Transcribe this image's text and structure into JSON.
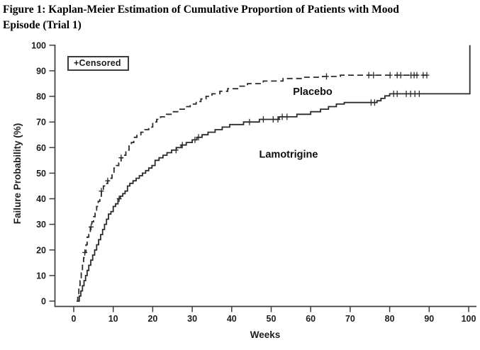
{
  "figure": {
    "title_line1": "Figure 1: Kaplan-Meier Estimation of Cumulative Proportion of Patients with Mood",
    "title_line2": "Episode (Trial 1)"
  },
  "colors": {
    "background": "#ffffff",
    "axis": "#3d3d3d",
    "line": "#2b2b2b",
    "text": "#1d1d1d"
  },
  "chart_data": {
    "type": "line",
    "subtype": "kaplan-meier-step",
    "title": "Figure 1: Kaplan-Meier Estimation of Cumulative Proportion of Patients with Mood Episode (Trial 1)",
    "xlabel": "Weeks",
    "ylabel": "Failure Probability (%)",
    "legend": "+Censored",
    "xlim": [
      0,
      100
    ],
    "ylim": [
      0,
      100
    ],
    "x_ticks": [
      0,
      10,
      20,
      30,
      40,
      50,
      60,
      70,
      80,
      90,
      100
    ],
    "y_ticks": [
      0,
      10,
      20,
      30,
      40,
      50,
      60,
      70,
      80,
      90,
      100
    ],
    "grid": false,
    "legend_position": "top-left-inside",
    "series": [
      {
        "name": "placebo",
        "label": "Placebo",
        "style": "dashed",
        "label_at": {
          "week": 60.5,
          "pct": 80.5
        },
        "points": [
          [
            0.7,
            0
          ],
          [
            1,
            2
          ],
          [
            1.3,
            5
          ],
          [
            1.6,
            8
          ],
          [
            1.9,
            11
          ],
          [
            2.2,
            14
          ],
          [
            2.5,
            17
          ],
          [
            2.8,
            19
          ],
          [
            3.1,
            22
          ],
          [
            3.4,
            25
          ],
          [
            3.8,
            27
          ],
          [
            4.2,
            29
          ],
          [
            4.6,
            31
          ],
          [
            5,
            33
          ],
          [
            5.4,
            35
          ],
          [
            5.8,
            37
          ],
          [
            6.2,
            39
          ],
          [
            6.6,
            41
          ],
          [
            7,
            43
          ],
          [
            7.5,
            45
          ],
          [
            8,
            46
          ],
          [
            8.6,
            47
          ],
          [
            9.2,
            48
          ],
          [
            9.7,
            50
          ],
          [
            10.2,
            52
          ],
          [
            10.8,
            53
          ],
          [
            11.4,
            54
          ],
          [
            12,
            56
          ],
          [
            12.6,
            57
          ],
          [
            13.2,
            59
          ],
          [
            14,
            61
          ],
          [
            14.6,
            62
          ],
          [
            15.2,
            64
          ],
          [
            16,
            65
          ],
          [
            17,
            66
          ],
          [
            18,
            67
          ],
          [
            19,
            68
          ],
          [
            20,
            70
          ],
          [
            21,
            71
          ],
          [
            22,
            72
          ],
          [
            23.5,
            73
          ],
          [
            25,
            74
          ],
          [
            26.5,
            75
          ],
          [
            28,
            76
          ],
          [
            29.5,
            77
          ],
          [
            31,
            78
          ],
          [
            32.2,
            79
          ],
          [
            33.5,
            80
          ],
          [
            35,
            81
          ],
          [
            37,
            82
          ],
          [
            39,
            83
          ],
          [
            41.5,
            84
          ],
          [
            44,
            85
          ],
          [
            48,
            86
          ],
          [
            53,
            87
          ],
          [
            58,
            87.5
          ],
          [
            63,
            87.8
          ],
          [
            67.5,
            88.3
          ],
          [
            89.5,
            88.3
          ]
        ],
        "censored": [
          [
            2.8,
            19
          ],
          [
            4.4,
            29
          ],
          [
            7,
            43
          ],
          [
            8.6,
            47
          ],
          [
            12,
            56
          ],
          [
            64,
            87.8
          ],
          [
            74.7,
            88.3
          ],
          [
            75.9,
            88.3
          ],
          [
            80.1,
            88.3
          ],
          [
            81.9,
            88.3
          ],
          [
            82.8,
            88.3
          ],
          [
            85.4,
            88.3
          ],
          [
            86.2,
            88.3
          ],
          [
            86.9,
            88.3
          ],
          [
            88.5,
            88.3
          ],
          [
            89.4,
            88.3
          ]
        ]
      },
      {
        "name": "lamotrigine",
        "label": "Lamotrigine",
        "style": "solid",
        "label_at": {
          "week": 54.4,
          "pct": 56
        },
        "points": [
          [
            1,
            0
          ],
          [
            1.4,
            2
          ],
          [
            1.8,
            4
          ],
          [
            2.2,
            6
          ],
          [
            2.6,
            8
          ],
          [
            3,
            10
          ],
          [
            3.4,
            12
          ],
          [
            3.8,
            14
          ],
          [
            4.3,
            16
          ],
          [
            4.8,
            18
          ],
          [
            5.3,
            20
          ],
          [
            5.8,
            22
          ],
          [
            6.3,
            24
          ],
          [
            6.8,
            26
          ],
          [
            7.3,
            28
          ],
          [
            7.8,
            30
          ],
          [
            8.3,
            32
          ],
          [
            8.8,
            34
          ],
          [
            9.4,
            35
          ],
          [
            10,
            37
          ],
          [
            10.6,
            38
          ],
          [
            11.2,
            40
          ],
          [
            11.8,
            41
          ],
          [
            12.4,
            42
          ],
          [
            13,
            43
          ],
          [
            13.6,
            45
          ],
          [
            14.2,
            46
          ],
          [
            15,
            47
          ],
          [
            15.8,
            48
          ],
          [
            16.6,
            49
          ],
          [
            17.4,
            50
          ],
          [
            18.2,
            51
          ],
          [
            19,
            52
          ],
          [
            19.8,
            53
          ],
          [
            20.6,
            55
          ],
          [
            21.6,
            56
          ],
          [
            22.6,
            57
          ],
          [
            23.6,
            58
          ],
          [
            24.8,
            59
          ],
          [
            26,
            60
          ],
          [
            27.2,
            61
          ],
          [
            28.5,
            62
          ],
          [
            30,
            63
          ],
          [
            31.2,
            64
          ],
          [
            32.5,
            65
          ],
          [
            34,
            66
          ],
          [
            35.8,
            67
          ],
          [
            37.6,
            68
          ],
          [
            39.5,
            69
          ],
          [
            43,
            70
          ],
          [
            47,
            71
          ],
          [
            52,
            72
          ],
          [
            56.5,
            73
          ],
          [
            60,
            74
          ],
          [
            62.5,
            75
          ],
          [
            64.5,
            76
          ],
          [
            66.5,
            77
          ],
          [
            68.5,
            77.6
          ],
          [
            76.8,
            78.3
          ],
          [
            77.8,
            79.2
          ],
          [
            78.8,
            80.2
          ],
          [
            80,
            81
          ],
          [
            100,
            81
          ],
          [
            100.3,
            100
          ]
        ],
        "censored": [
          [
            11.5,
            40
          ],
          [
            25.9,
            59
          ],
          [
            27.5,
            61
          ],
          [
            30.7,
            63
          ],
          [
            31.6,
            64
          ],
          [
            44.5,
            70
          ],
          [
            48,
            71
          ],
          [
            50.5,
            71
          ],
          [
            51.7,
            71
          ],
          [
            52.8,
            72
          ],
          [
            54,
            72
          ],
          [
            75.3,
            77.6
          ],
          [
            76.2,
            77.6
          ],
          [
            81,
            81
          ],
          [
            81.9,
            81
          ],
          [
            84.2,
            81
          ],
          [
            85.3,
            81
          ],
          [
            86.4,
            81
          ],
          [
            87.5,
            81
          ]
        ]
      }
    ]
  }
}
